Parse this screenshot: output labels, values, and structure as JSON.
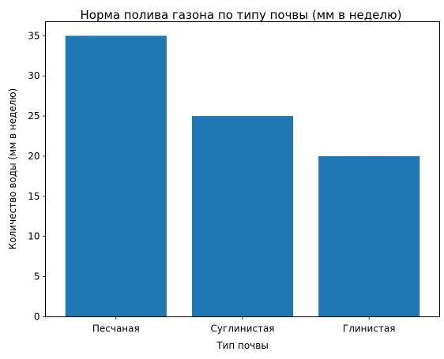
{
  "chart_data": {
    "type": "bar",
    "title": "Норма полива газона по типу почвы (мм в неделю)",
    "xlabel": "Тип почвы",
    "ylabel": "Количество воды (мм в неделю)",
    "categories": [
      "Песчаная",
      "Суглинистая",
      "Глинистая"
    ],
    "values": [
      35,
      25,
      20
    ],
    "ylim": [
      0,
      36.75
    ],
    "yticks": [
      0,
      5,
      10,
      15,
      20,
      25,
      30,
      35
    ],
    "bar_color": "#1f77b4",
    "grid": false,
    "legend": "none"
  }
}
